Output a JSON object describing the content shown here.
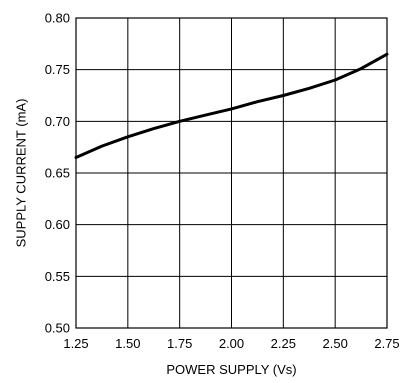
{
  "chart_data": {
    "type": "line",
    "title": "",
    "xlabel": "POWER SUPPLY (Vs)",
    "ylabel": "SUPPLY CURRENT (mA)",
    "xlim": [
      1.25,
      2.75
    ],
    "ylim": [
      0.5,
      0.8
    ],
    "grid": true,
    "x_ticks": [
      "1.25",
      "1.50",
      "1.75",
      "2.00",
      "2.25",
      "2.50",
      "2.75"
    ],
    "y_ticks": [
      "0.50",
      "0.55",
      "0.60",
      "0.65",
      "0.70",
      "0.75",
      "0.80"
    ],
    "series": [
      {
        "x": [
          1.25,
          1.375,
          1.5,
          1.625,
          1.75,
          1.875,
          2.0,
          2.125,
          2.25,
          2.375,
          2.5,
          2.625,
          2.75
        ],
        "values": [
          0.665,
          0.676,
          0.685,
          0.693,
          0.7,
          0.706,
          0.712,
          0.719,
          0.725,
          0.732,
          0.74,
          0.751,
          0.765
        ]
      }
    ],
    "colors": {
      "line": "#000000",
      "grid": "#000000",
      "background": "#ffffff"
    }
  }
}
